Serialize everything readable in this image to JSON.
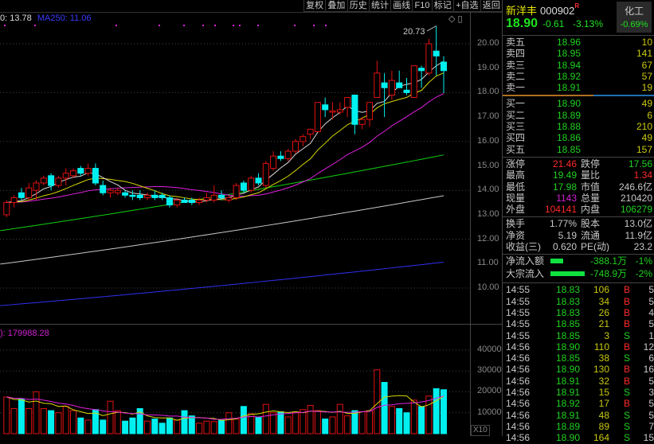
{
  "toolbar": [
    "复权",
    "叠加",
    "历史",
    "统计",
    "画线",
    "F10",
    "标记",
    "+自选",
    "返回"
  ],
  "legend": {
    "ma120": "0: 13.78",
    "ma250": "MA250: 11.06",
    "volume": "): 179988.28",
    "high_marker": "20.73"
  },
  "price_axis": [
    "20.00",
    "19.00",
    "18.00",
    "17.00",
    "16.00",
    "15.00",
    "14.00",
    "13.00",
    "12.00",
    "11.00",
    "10.00"
  ],
  "volume_axis": [
    "40000",
    "30000",
    "20000",
    "10000"
  ],
  "x10_label": "X10",
  "colors": {
    "up": "#e01010",
    "down": "#00f0f0",
    "ma5": "#d8d8d8",
    "ma10": "#d8d800",
    "ma20": "#e020e0",
    "ma60": "#10d010",
    "ma120": "#c8c8c8",
    "ma250": "#3030f0"
  },
  "chart_data": {
    "type": "candlestick",
    "ohlc": [
      [
        13.0,
        13.6,
        12.9,
        13.5
      ],
      [
        13.5,
        13.8,
        13.3,
        13.7
      ],
      [
        13.9,
        14.1,
        13.6,
        13.7
      ],
      [
        13.7,
        14.3,
        13.6,
        14.1
      ],
      [
        14.0,
        14.4,
        13.6,
        14.3
      ],
      [
        14.3,
        14.6,
        14.2,
        14.5
      ],
      [
        14.6,
        14.7,
        14.0,
        14.2
      ],
      [
        14.2,
        14.6,
        14.1,
        14.5
      ],
      [
        14.5,
        14.9,
        14.2,
        14.7
      ],
      [
        14.6,
        14.9,
        14.5,
        14.8
      ],
      [
        14.9,
        15.0,
        14.6,
        14.7
      ],
      [
        14.7,
        15.1,
        14.6,
        14.9
      ],
      [
        14.9,
        15.1,
        14.2,
        14.3
      ],
      [
        14.2,
        14.4,
        13.8,
        13.9
      ],
      [
        13.9,
        14.1,
        13.7,
        14.0
      ],
      [
        13.9,
        14.1,
        13.8,
        14.0
      ],
      [
        13.9,
        14.0,
        13.7,
        13.8
      ],
      [
        13.8,
        14.0,
        13.6,
        13.75
      ],
      [
        13.8,
        14.0,
        13.6,
        13.7
      ],
      [
        13.7,
        13.9,
        13.6,
        13.8
      ],
      [
        13.8,
        14.0,
        13.6,
        13.7
      ],
      [
        13.8,
        13.9,
        13.6,
        13.7
      ],
      [
        13.7,
        13.8,
        13.3,
        13.4
      ],
      [
        13.4,
        13.7,
        13.3,
        13.6
      ],
      [
        13.6,
        13.7,
        13.5,
        13.5
      ],
      [
        13.6,
        13.7,
        13.4,
        13.5
      ],
      [
        13.5,
        13.7,
        13.4,
        13.6
      ],
      [
        13.6,
        13.9,
        13.5,
        13.7
      ],
      [
        13.6,
        14.2,
        13.5,
        13.8
      ],
      [
        13.8,
        14.0,
        13.6,
        13.7
      ],
      [
        13.6,
        13.8,
        13.5,
        13.7
      ],
      [
        13.7,
        14.3,
        13.6,
        14.2
      ],
      [
        14.3,
        14.4,
        13.9,
        14.0
      ],
      [
        14.0,
        14.6,
        13.9,
        14.5
      ],
      [
        14.5,
        14.7,
        14.2,
        14.3
      ],
      [
        14.2,
        15.2,
        14.1,
        15.1
      ],
      [
        14.9,
        15.6,
        14.8,
        15.4
      ],
      [
        15.4,
        15.6,
        15.2,
        15.3
      ],
      [
        15.3,
        15.7,
        15.2,
        15.6
      ],
      [
        15.6,
        16.1,
        15.5,
        16.0
      ],
      [
        16.0,
        16.3,
        15.8,
        16.2
      ],
      [
        16.3,
        16.5,
        16.1,
        16.5
      ],
      [
        16.4,
        17.6,
        16.4,
        17.6
      ],
      [
        17.5,
        17.8,
        17.0,
        17.3
      ],
      [
        17.2,
        17.6,
        16.9,
        17.25
      ],
      [
        17.2,
        17.6,
        17.1,
        17.3
      ],
      [
        17.4,
        17.8,
        17.0,
        17.8
      ],
      [
        17.9,
        17.9,
        16.3,
        16.7
      ],
      [
        16.7,
        17.0,
        16.5,
        16.9
      ],
      [
        16.9,
        17.6,
        16.6,
        17.6
      ],
      [
        17.8,
        19.3,
        17.8,
        18.8
      ],
      [
        18.4,
        18.8,
        17.0,
        18.2
      ],
      [
        17.9,
        18.9,
        17.7,
        18.5
      ],
      [
        18.4,
        18.9,
        18.2,
        18.2
      ],
      [
        18.1,
        18.6,
        17.9,
        18.0
      ],
      [
        17.8,
        19.1,
        17.8,
        19.1
      ],
      [
        19.0,
        19.1,
        18.2,
        18.9
      ],
      [
        18.8,
        20.2,
        18.7,
        20.0
      ],
      [
        19.7,
        20.73,
        18.7,
        19.5
      ],
      [
        19.25,
        19.49,
        17.98,
        18.9
      ]
    ],
    "volume": [
      17500,
      12000,
      16500,
      12000,
      20000,
      12000,
      11000,
      10000,
      13000,
      11000,
      7500,
      6500,
      11500,
      6500,
      15500,
      11000,
      6000,
      7500,
      12000,
      6000,
      7000,
      5000,
      7500,
      6500,
      11000,
      8500,
      5000,
      6000,
      5800,
      6500,
      10000,
      7000,
      13000,
      9500,
      8000,
      14000,
      10000,
      10500,
      8000,
      10000,
      11500,
      13500,
      11000,
      7000,
      8000,
      14000,
      8500,
      11000,
      10500,
      11000,
      30500,
      24500,
      13000,
      12000,
      10000,
      16000,
      13000,
      18000,
      21500,
      21000
    ],
    "ma_lines": {
      "ma60": [
        12.35,
        15.45
      ],
      "ma120": [
        10.98,
        13.78
      ],
      "ma250": [
        9.28,
        11.06
      ]
    },
    "ylim": [
      9.5,
      21
    ],
    "vol_ylim": [
      0,
      45000
    ]
  },
  "stock": {
    "name": "新洋丰",
    "code": "000902",
    "badge": "R",
    "price": "18.90",
    "change": "-0.61",
    "pct": "-3.13%",
    "industry": "化工",
    "industry_pct": "-0.69%"
  },
  "asks": [
    {
      "l": "卖五",
      "p": "18.96",
      "v": "10"
    },
    {
      "l": "卖四",
      "p": "18.95",
      "v": "141"
    },
    {
      "l": "卖三",
      "p": "18.94",
      "v": "67"
    },
    {
      "l": "卖二",
      "p": "18.92",
      "v": "57"
    },
    {
      "l": "卖一",
      "p": "18.91",
      "v": "19"
    }
  ],
  "bids": [
    {
      "l": "买一",
      "p": "18.90",
      "v": "49"
    },
    {
      "l": "买二",
      "p": "18.89",
      "v": "6"
    },
    {
      "l": "买三",
      "p": "18.88",
      "v": "210"
    },
    {
      "l": "买四",
      "p": "18.86",
      "v": "49"
    },
    {
      "l": "买五",
      "p": "18.85",
      "v": "157"
    }
  ],
  "stats": [
    {
      "l1": "涨停",
      "v1": "21.46",
      "c1": "r",
      "l2": "跌停",
      "v2": "17.56",
      "c2": "g"
    },
    {
      "l1": "最高",
      "v1": "19.49",
      "c1": "g",
      "l2": "量比",
      "v2": "1.34",
      "c2": "r"
    },
    {
      "l1": "最低",
      "v1": "17.98",
      "c1": "g",
      "l2": "市值",
      "v2": "246.6亿",
      "c2": "w"
    },
    {
      "l1": "现量",
      "v1": "1143",
      "c1": "m",
      "l2": "总量",
      "v2": "210420",
      "c2": "w"
    },
    {
      "l1": "外盘",
      "v1": "104141",
      "c1": "r",
      "l2": "内盘",
      "v2": "106279",
      "c2": "g"
    }
  ],
  "fin": [
    {
      "l1": "换手",
      "v1": "1.77%",
      "l2": "股本",
      "v2": "13.0亿"
    },
    {
      "l1": "净资",
      "v1": "5.19",
      "l2": "流通",
      "v2": "11.9亿"
    },
    {
      "l1": "收益(三)",
      "v1": "0.620",
      "l2": "PE(动)",
      "v2": "23.2"
    }
  ],
  "flows": [
    {
      "l": "净流入额",
      "v": "-388.1万",
      "p": "-1%",
      "bar": 0.37
    },
    {
      "l": "大宗流入",
      "v": "-748.9万",
      "p": "-2%",
      "bar": 1.0
    }
  ],
  "trades": [
    [
      "14:55",
      "18.83",
      "106",
      "B",
      "5"
    ],
    [
      "14:55",
      "18.83",
      "34",
      "B",
      "5"
    ],
    [
      "14:55",
      "18.83",
      "26",
      "B",
      "4"
    ],
    [
      "14:55",
      "18.85",
      "21",
      "B",
      "5"
    ],
    [
      "14:55",
      "18.85",
      "3",
      "S",
      "1"
    ],
    [
      "14:56",
      "18.90",
      "110",
      "B",
      "12"
    ],
    [
      "14:56",
      "18.85",
      "38",
      "S",
      "6"
    ],
    [
      "14:56",
      "18.90",
      "130",
      "B",
      "16"
    ],
    [
      "14:56",
      "18.91",
      "32",
      "B",
      "5"
    ],
    [
      "14:56",
      "18.91",
      "15",
      "S",
      "3"
    ],
    [
      "14:56",
      "18.92",
      "17",
      "B",
      "5"
    ],
    [
      "14:56",
      "18.91",
      "48",
      "S",
      "5"
    ],
    [
      "14:56",
      "18.89",
      "89",
      "S",
      "7"
    ],
    [
      "14:56",
      "18.90",
      "164",
      "S",
      "15"
    ]
  ]
}
